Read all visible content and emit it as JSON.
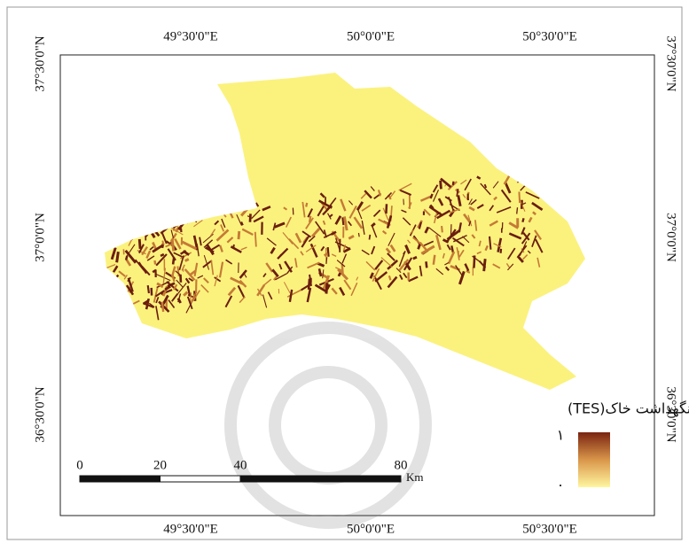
{
  "map": {
    "top_labels": [
      "49°30'0\"E",
      "50°0'0\"E",
      "50°30'0\"E"
    ],
    "bottom_labels": [
      "49°30'0\"E",
      "50°0'0\"E",
      "50°30'0\"E"
    ],
    "left_labels": [
      "37°30'0\"N",
      "37°0'0\"N",
      "36°30'0\"N"
    ],
    "right_labels": [
      "37°30'0\"N",
      "37°0'0\"N",
      "36°30'0\"N"
    ],
    "legend": {
      "title": "نگهداشت خاک(TES)",
      "high": "١",
      "low": "۰"
    },
    "scale_bar": {
      "labels": [
        0,
        20,
        40,
        80
      ],
      "unit": "Km"
    }
  }
}
